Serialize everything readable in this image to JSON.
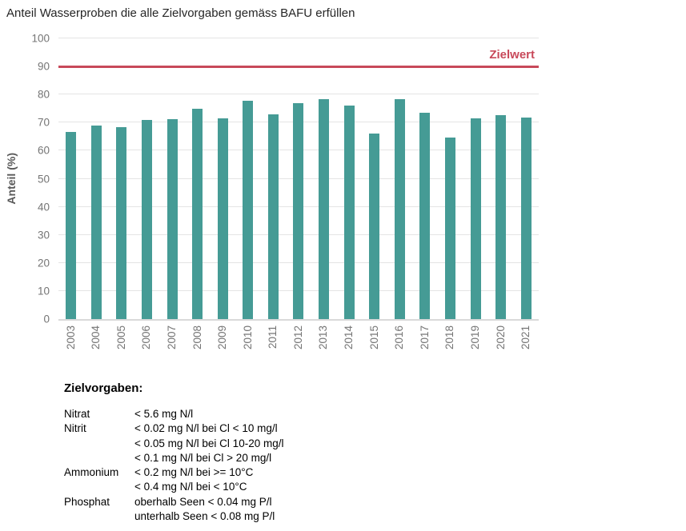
{
  "title": "Anteil Wasserproben die alle Zielvorgaben gemäss BAFU erfüllen",
  "chart_data": {
    "type": "bar",
    "categories": [
      "2003",
      "2004",
      "2005",
      "2006",
      "2007",
      "2008",
      "2009",
      "2010",
      "2011",
      "2012",
      "2013",
      "2014",
      "2015",
      "2016",
      "2017",
      "2018",
      "2019",
      "2020",
      "2021"
    ],
    "values": [
      66.8,
      68.9,
      68.5,
      70.9,
      71.2,
      74.9,
      71.5,
      77.7,
      72.9,
      76.8,
      78.4,
      76.2,
      66.1,
      78.4,
      73.4,
      64.7,
      71.5,
      72.6,
      71.9
    ],
    "title": "Anteil Wasserproben die alle Zielvorgaben gemäss BAFU erfüllen",
    "xlabel": "",
    "ylabel": "Anteil (%)",
    "ylim": [
      0,
      100
    ],
    "yticks": [
      0,
      10,
      20,
      30,
      40,
      50,
      60,
      70,
      80,
      90,
      100
    ],
    "grid": true,
    "bar_color": "#459B95",
    "target_line": {
      "value": 90,
      "label": "Zielwert",
      "color": "#C8495A"
    }
  },
  "zielvorgaben": {
    "heading": "Zielvorgaben:",
    "rows": [
      {
        "label": "Nitrat",
        "value": "< 5.6 mg N/l"
      },
      {
        "label": "Nitrit",
        "value": "< 0.02 mg N/l bei Cl < 10 mg/l"
      },
      {
        "label": "",
        "value": "< 0.05 mg N/l bei Cl 10-20 mg/l"
      },
      {
        "label": "",
        "value": "< 0.1 mg N/l bei Cl > 20 mg/l"
      },
      {
        "label": "Ammonium",
        "value": "< 0.2 mg N/l bei >= 10°C"
      },
      {
        "label": "",
        "value": "< 0.4 mg N/l bei < 10°C"
      },
      {
        "label": "Phosphat",
        "value": "oberhalb Seen < 0.04 mg P/l"
      },
      {
        "label": "",
        "value": "unterhalb Seen < 0.08 mg P/l"
      }
    ]
  }
}
